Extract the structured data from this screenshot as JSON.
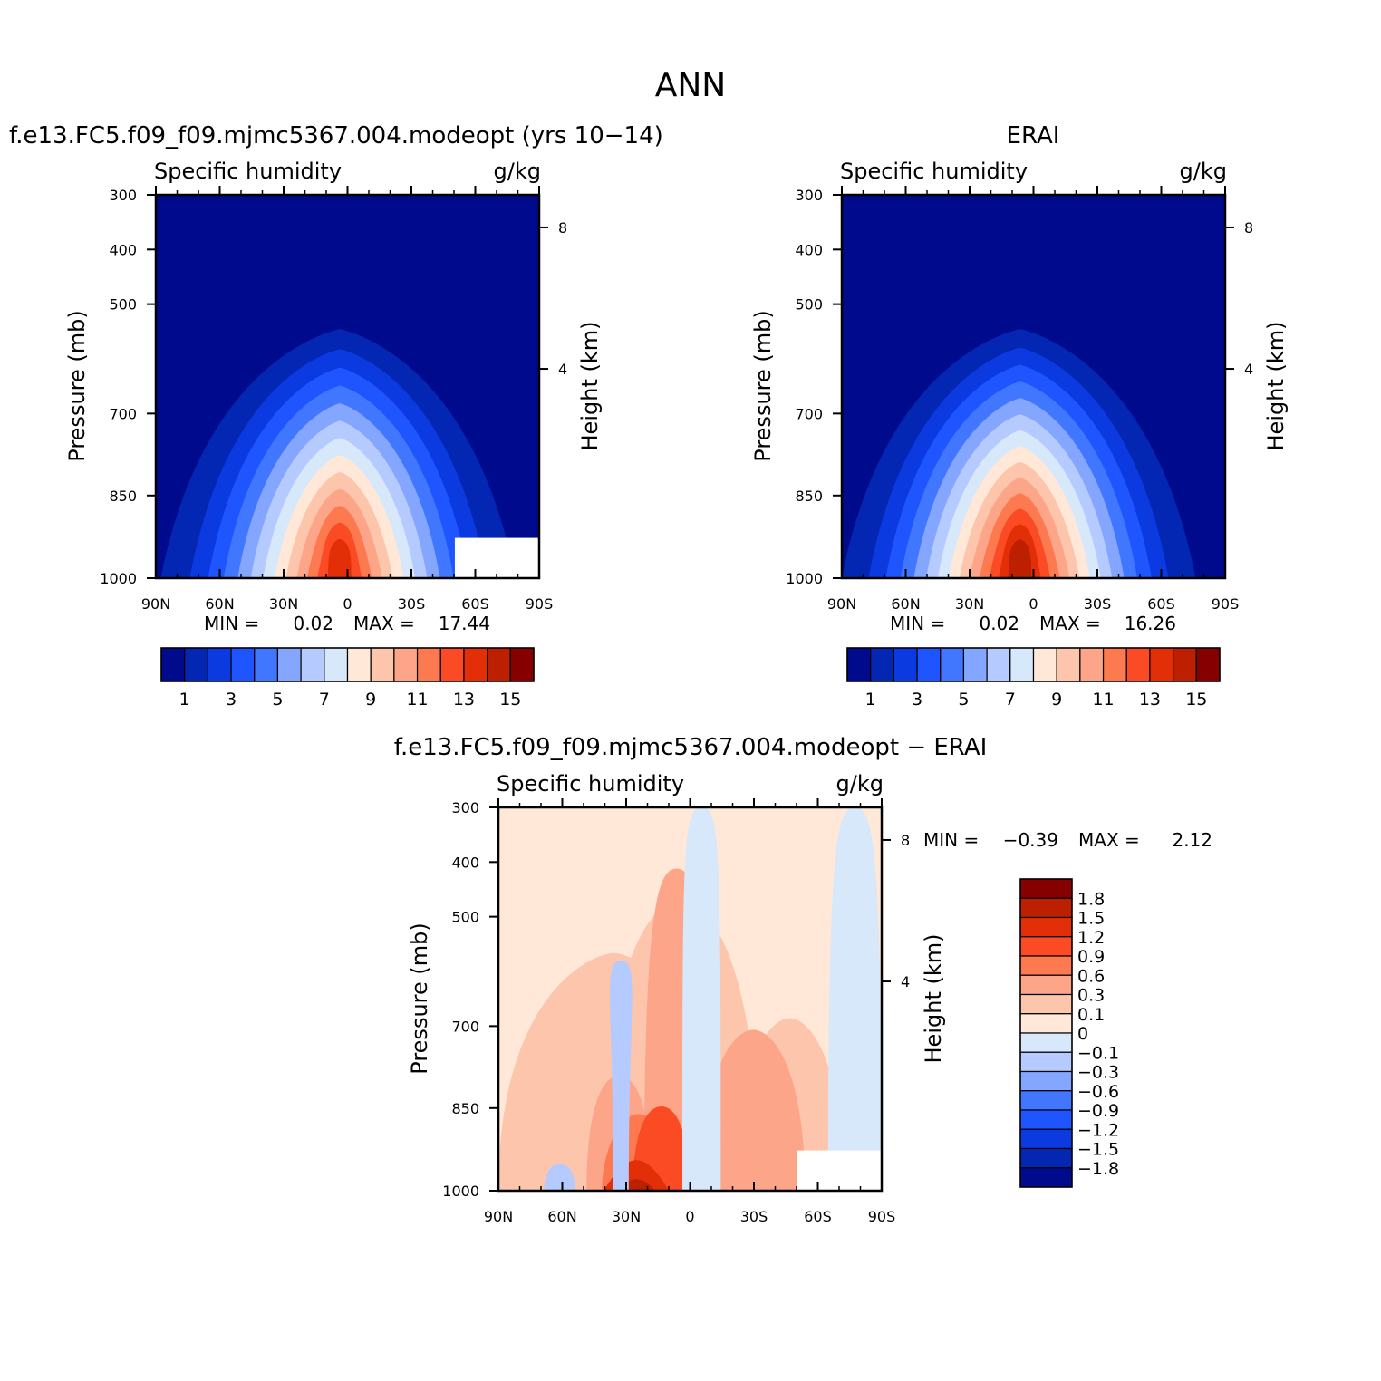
{
  "figure": {
    "title": "ANN"
  },
  "colors": {
    "seq": [
      "#000a8c",
      "#0427b3",
      "#0a3ae0",
      "#1f55ff",
      "#4176ff",
      "#85a6ff",
      "#b5caff",
      "#d8e8fb",
      "#ffe8d7",
      "#fcc5ac",
      "#fca588",
      "#fd7a50",
      "#fb4b24",
      "#e22f08",
      "#bc2000",
      "#870000"
    ],
    "diff": [
      "#870000",
      "#bc2000",
      "#e22f08",
      "#fb4b24",
      "#fd7a50",
      "#fca588",
      "#fcc5ac",
      "#ffe8d7",
      "#d8e8fb",
      "#b5caff",
      "#85a6ff",
      "#4176ff",
      "#1f55ff",
      "#0a3ae0",
      "#0427b3",
      "#000a8c"
    ]
  },
  "chart_data": [
    {
      "type": "heatmap",
      "title": "f.e13.FC5.f09_f09.mjmc5367.004.modeopt (yrs 10−14)",
      "left_label": "Specific humidity",
      "right_label": "g/kg",
      "ylabel": "Pressure (mb)",
      "ylabel_right": "Height (km)",
      "x_ticks": [
        "90N",
        "60N",
        "30N",
        "0",
        "30S",
        "60S",
        "90S"
      ],
      "y_ticks": [
        "300",
        "400",
        "500",
        "700",
        "850",
        "1000"
      ],
      "y_ticks_right": [
        "8",
        "4"
      ],
      "min_label": "MIN =",
      "min_value": "0.02",
      "max_label": "MAX =",
      "max_value": "17.44",
      "peak": 17.44,
      "colorbar_labels": [
        "1",
        "3",
        "5",
        "7",
        "9",
        "11",
        "13",
        "15"
      ]
    },
    {
      "type": "heatmap",
      "title": "ERAI",
      "left_label": "Specific humidity",
      "right_label": "g/kg",
      "ylabel": "Pressure (mb)",
      "ylabel_right": "Height (km)",
      "x_ticks": [
        "90N",
        "60N",
        "30N",
        "0",
        "30S",
        "60S",
        "90S"
      ],
      "y_ticks": [
        "300",
        "400",
        "500",
        "700",
        "850",
        "1000"
      ],
      "y_ticks_right": [
        "8",
        "4"
      ],
      "min_label": "MIN =",
      "min_value": "0.02",
      "max_label": "MAX =",
      "max_value": "16.26",
      "peak": 16.26,
      "colorbar_labels": [
        "1",
        "3",
        "5",
        "7",
        "9",
        "11",
        "13",
        "15"
      ]
    },
    {
      "type": "heatmap",
      "title": "f.e13.FC5.f09_f09.mjmc5367.004.modeopt − ERAI",
      "left_label": "Specific humidity",
      "right_label": "g/kg",
      "ylabel": "Pressure (mb)",
      "ylabel_right": "Height (km)",
      "x_ticks": [
        "90N",
        "60N",
        "30N",
        "0",
        "30S",
        "60S",
        "90S"
      ],
      "y_ticks": [
        "300",
        "400",
        "500",
        "700",
        "850",
        "1000"
      ],
      "y_ticks_right": [
        "8",
        "4"
      ],
      "min_label": "MIN =",
      "min_value": "−0.39",
      "max_label": "MAX =",
      "max_value": "2.12",
      "colorbar_labels": [
        "1.8",
        "1.5",
        "1.2",
        "0.9",
        "0.6",
        "0.3",
        "0.1",
        "0",
        "−0.1",
        "−0.3",
        "−0.6",
        "−0.9",
        "−1.2",
        "−1.5",
        "−1.8"
      ]
    }
  ]
}
